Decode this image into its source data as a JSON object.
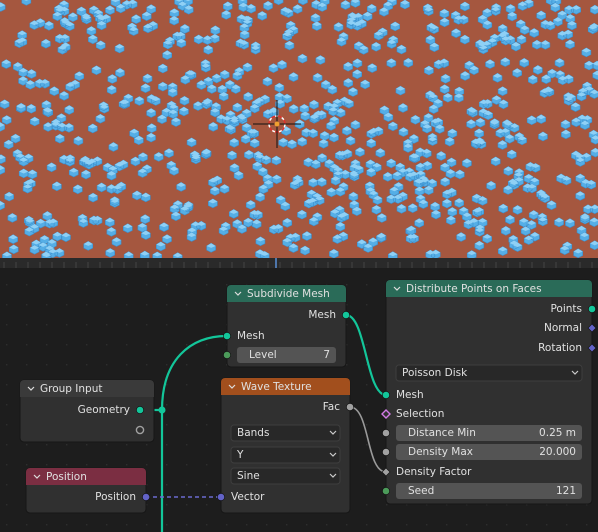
{
  "nodes": [
    {
      "title": "Subdivide Mesh",
      "rows": [
        {
          "label": "Mesh"
        },
        {
          "label": "Mesh"
        },
        {
          "label": "Level",
          "value": 7
        }
      ]
    },
    {
      "title": "Group Input",
      "rows": [
        {
          "label": "Geometry"
        }
      ]
    },
    {
      "title": "Position",
      "rows": [
        {
          "label": "Position"
        }
      ]
    },
    {
      "title": "Wave Texture",
      "rows": [
        {
          "label": "Fac"
        },
        {
          "label": "Bands"
        },
        {
          "label": "Y"
        },
        {
          "label": "Sine"
        },
        {
          "label": "Vector"
        }
      ]
    },
    {
      "title": "Distribute Points on Faces",
      "rows": [
        {
          "label": "Points"
        },
        {
          "label": "Normal"
        },
        {
          "label": "Rotation"
        },
        {
          "label": "Poisson Disk"
        },
        {
          "label": "Mesh"
        },
        {
          "label": "Selection"
        },
        {
          "label": "Distance Min",
          "value": "0.25 m"
        },
        {
          "label": "Density Max",
          "value": "20.000"
        },
        {
          "label": "Density Factor"
        },
        {
          "label": "Seed",
          "value": 121
        }
      ]
    }
  ]
}
